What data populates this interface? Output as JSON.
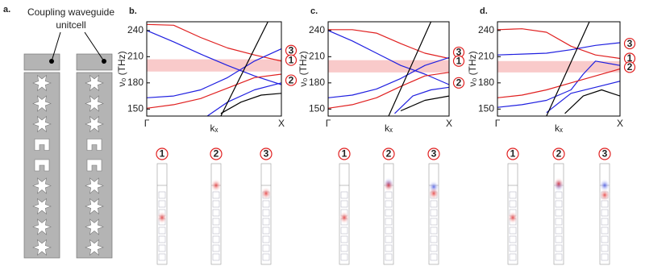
{
  "panel_a": {
    "label": "a.",
    "caption_lines": [
      "Coupling waveguide",
      "unitcell"
    ]
  },
  "chart_data": [
    {
      "type": "line",
      "label": "b.",
      "ylabel": "ν₀ (THz)",
      "xlabel": "kₓ",
      "xlim": [
        0,
        10
      ],
      "xticks": [
        {
          "value": 0,
          "label": "Γ"
        },
        {
          "value": 10,
          "label": "X"
        }
      ],
      "ylim": [
        142,
        250
      ],
      "yticks": [
        150,
        180,
        210,
        240
      ],
      "band": {
        "range": [
          193,
          207
        ],
        "color": "#f9caca"
      },
      "series": [
        {
          "color": "#e02020",
          "x": [
            0,
            2,
            4,
            6,
            8,
            10
          ],
          "values": [
            247,
            246,
            232,
            220,
            212,
            205
          ]
        },
        {
          "color": "#2020e0",
          "x": [
            0,
            2,
            4,
            6,
            8,
            10
          ],
          "values": [
            240,
            227,
            213,
            200,
            188,
            178
          ]
        },
        {
          "color": "#2020e0",
          "x": [
            0,
            2,
            4,
            6,
            8,
            10
          ],
          "values": [
            163,
            165,
            172,
            186,
            205,
            219
          ]
        },
        {
          "color": "#e02020",
          "x": [
            0,
            2,
            4,
            6,
            8,
            10
          ],
          "values": [
            151,
            155,
            162,
            174,
            186,
            190
          ]
        },
        {
          "color": "#2020e0",
          "x": [
            4.5,
            6,
            8,
            10
          ],
          "values": [
            142,
            158,
            172,
            180
          ]
        },
        {
          "color": "#000000",
          "x": [
            5.5,
            9
          ],
          "values": [
            142,
            250
          ]
        },
        {
          "color": "#000000",
          "x": [
            5.5,
            7,
            8.5,
            10
          ],
          "values": [
            145,
            158,
            166,
            168
          ]
        }
      ],
      "annotations": [
        {
          "text": "3",
          "y": 217
        },
        {
          "text": "1",
          "y": 206
        },
        {
          "text": "2",
          "y": 183
        }
      ],
      "mode_labels": [
        "1",
        "2",
        "3"
      ]
    },
    {
      "type": "line",
      "label": "c.",
      "ylabel": "ν₀ (THz)",
      "xlabel": "kₓ",
      "xlim": [
        0,
        10
      ],
      "xticks": [
        {
          "value": 0,
          "label": "Γ"
        },
        {
          "value": 10,
          "label": "X"
        }
      ],
      "ylim": [
        142,
        250
      ],
      "yticks": [
        150,
        180,
        210,
        240
      ],
      "band": {
        "range": [
          192,
          206
        ],
        "color": "#f9caca"
      },
      "series": [
        {
          "color": "#e02020",
          "x": [
            0,
            2,
            4,
            6,
            8,
            10
          ],
          "values": [
            241,
            241,
            237,
            225,
            214,
            208
          ]
        },
        {
          "color": "#2020e0",
          "x": [
            0,
            2,
            4,
            6,
            8,
            10
          ],
          "values": [
            240,
            228,
            214,
            200,
            190,
            178
          ]
        },
        {
          "color": "#2020e0",
          "x": [
            0,
            2,
            4,
            6,
            8,
            10
          ],
          "values": [
            163,
            166,
            173,
            185,
            200,
            209
          ]
        },
        {
          "color": "#e02020",
          "x": [
            0,
            2,
            4,
            6,
            8,
            10
          ],
          "values": [
            151,
            155,
            163,
            176,
            188,
            192
          ]
        },
        {
          "color": "#2020e0",
          "x": [
            5.5,
            7,
            8.5,
            10
          ],
          "values": [
            145,
            165,
            172,
            175
          ]
        },
        {
          "color": "#000000",
          "x": [
            5,
            8.5
          ],
          "values": [
            142,
            250
          ]
        },
        {
          "color": "#000000",
          "x": [
            6,
            8,
            10
          ],
          "values": [
            148,
            160,
            165
          ]
        }
      ],
      "annotations": [
        {
          "text": "3",
          "y": 215
        },
        {
          "text": "1",
          "y": 205
        },
        {
          "text": "2",
          "y": 180
        }
      ],
      "mode_labels": [
        "1",
        "2",
        "3"
      ]
    },
    {
      "type": "line",
      "label": "d.",
      "ylabel": "ν₀ (THz)",
      "xlabel": "kₓ",
      "xlim": [
        0,
        10
      ],
      "xticks": [
        {
          "value": 0,
          "label": "Γ"
        },
        {
          "value": 10,
          "label": "X"
        }
      ],
      "ylim": [
        142,
        250
      ],
      "yticks": [
        150,
        180,
        210,
        240
      ],
      "band": {
        "range": [
          192,
          205
        ],
        "color": "#f9caca"
      },
      "series": [
        {
          "color": "#e02020",
          "x": [
            0,
            2,
            4,
            6,
            8,
            10
          ],
          "values": [
            241,
            242,
            238,
            222,
            212,
            208
          ]
        },
        {
          "color": "#2020e0",
          "x": [
            0,
            2,
            4,
            6,
            8,
            10
          ],
          "values": [
            212,
            213,
            214,
            218,
            223,
            226
          ]
        },
        {
          "color": "#2020e0",
          "x": [
            0,
            2,
            4,
            6,
            7,
            8,
            10
          ],
          "values": [
            152,
            155,
            160,
            172,
            190,
            205,
            200
          ]
        },
        {
          "color": "#e02020",
          "x": [
            0,
            2,
            4,
            6,
            8,
            10
          ],
          "values": [
            163,
            166,
            172,
            180,
            188,
            196
          ]
        },
        {
          "color": "#2020e0",
          "x": [
            4,
            6,
            8,
            10
          ],
          "values": [
            146,
            168,
            175,
            182
          ]
        },
        {
          "color": "#000000",
          "x": [
            4,
            7.5
          ],
          "values": [
            142,
            250
          ]
        },
        {
          "color": "#000000",
          "x": [
            5.5,
            7,
            8.5,
            10
          ],
          "values": [
            145,
            165,
            172,
            165
          ]
        }
      ],
      "annotations": [
        {
          "text": "3",
          "y": 225
        },
        {
          "text": "1",
          "y": 208
        },
        {
          "text": "2",
          "y": 198
        }
      ],
      "mode_labels": [
        "1",
        "2",
        "3"
      ]
    }
  ]
}
